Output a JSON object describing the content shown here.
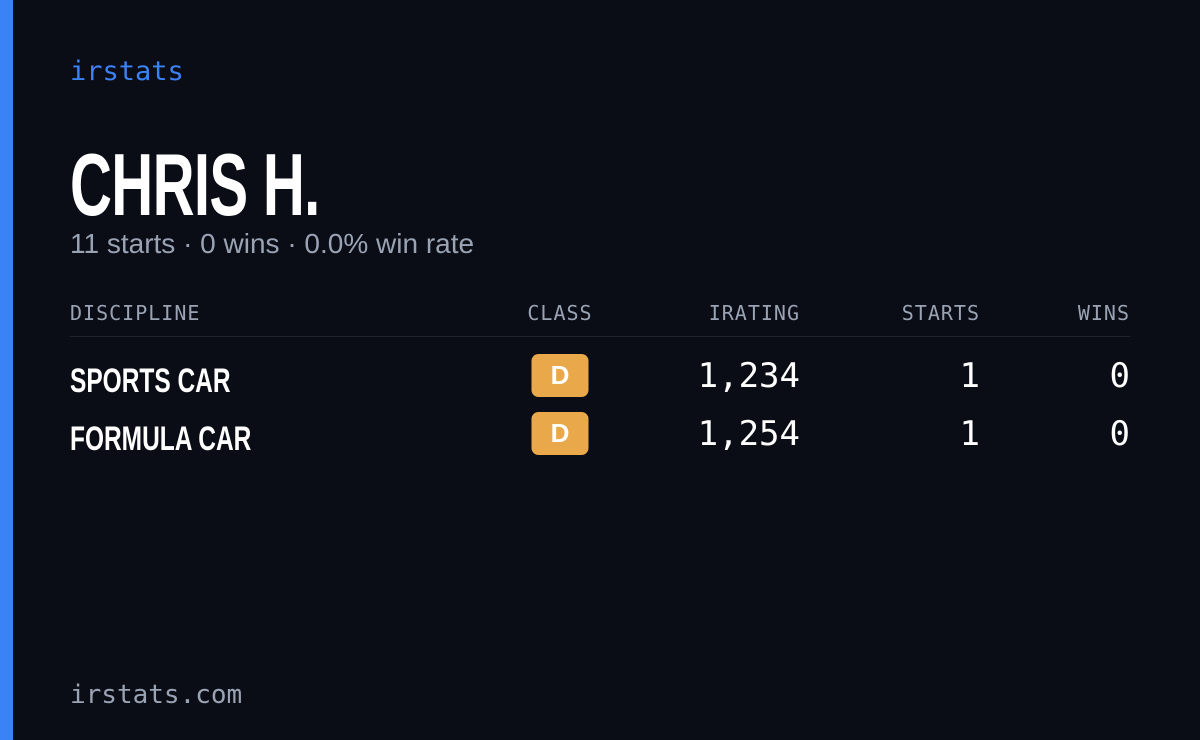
{
  "brand": "irstats",
  "profile": {
    "name": "CHRIS H.",
    "summary": "11 starts · 0 wins · 0.0% win rate"
  },
  "table": {
    "columns": [
      "DISCIPLINE",
      "CLASS",
      "IRATING",
      "STARTS",
      "WINS"
    ],
    "rows": [
      [
        "SPORTS CAR",
        "D",
        "1,234",
        "1",
        "0"
      ],
      [
        "FORMULA CAR",
        "D",
        "1,254",
        "1",
        "0"
      ]
    ]
  },
  "footer": "irstats.com"
}
